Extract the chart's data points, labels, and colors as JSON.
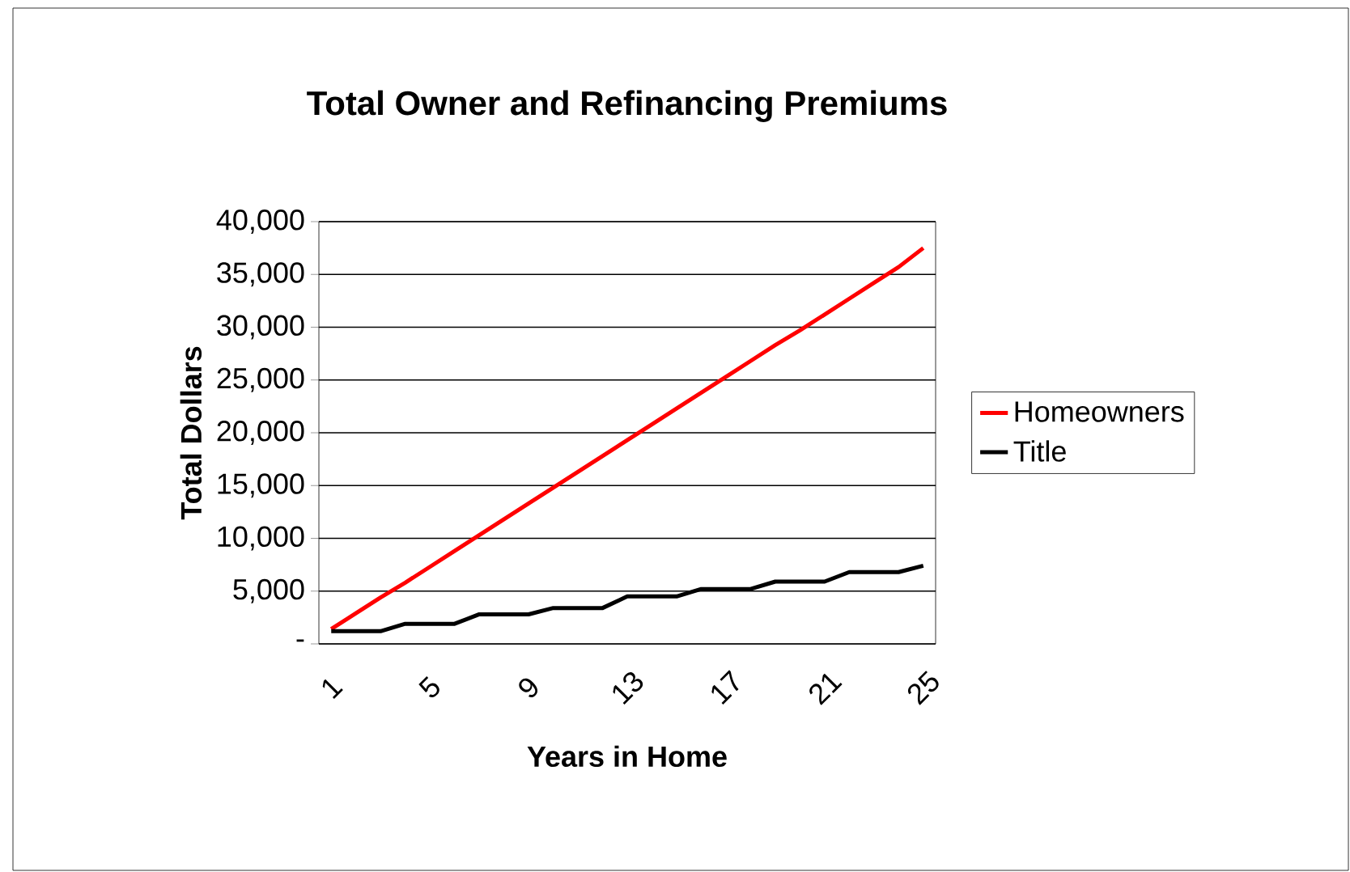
{
  "chart_data": {
    "type": "line",
    "title": "Total Owner and Refinancing Premiums",
    "xlabel": "Years in Home",
    "ylabel": "Total Dollars",
    "categories": [
      "1",
      null,
      null,
      null,
      "5",
      null,
      null,
      null,
      "9",
      null,
      null,
      null,
      "13",
      null,
      null,
      null,
      "17",
      null,
      null,
      null,
      "21",
      null,
      null,
      null,
      "25"
    ],
    "series": [
      {
        "name": "Homeowners",
        "color": "#ff0000",
        "values": [
          1400,
          2900,
          4400,
          5800,
          7300,
          8800,
          10300,
          11800,
          13300,
          14800,
          16300,
          17800,
          19300,
          20800,
          22300,
          23800,
          25300,
          26800,
          28300,
          29700,
          31200,
          32700,
          34200,
          35700,
          37500
        ]
      },
      {
        "name": "Title",
        "color": "#000000",
        "values": [
          1200,
          1200,
          1200,
          1900,
          1900,
          1900,
          2800,
          2800,
          2800,
          3400,
          3400,
          3400,
          4500,
          4500,
          4500,
          5200,
          5200,
          5200,
          5900,
          5900,
          5900,
          6800,
          6800,
          6800,
          7400
        ]
      }
    ],
    "ylim": [
      0,
      40000
    ],
    "yticks": [
      {
        "value": 0,
        "label": "-"
      },
      {
        "value": 5000,
        "label": "5,000"
      },
      {
        "value": 10000,
        "label": "10,000"
      },
      {
        "value": 15000,
        "label": "15,000"
      },
      {
        "value": 20000,
        "label": "20,000"
      },
      {
        "value": 25000,
        "label": "25,000"
      },
      {
        "value": 30000,
        "label": "30,000"
      },
      {
        "value": 35000,
        "label": "35,000"
      },
      {
        "value": 40000,
        "label": "40,000"
      }
    ],
    "grid": "y",
    "legend": "right",
    "marker": "none",
    "line_style": "solid"
  }
}
